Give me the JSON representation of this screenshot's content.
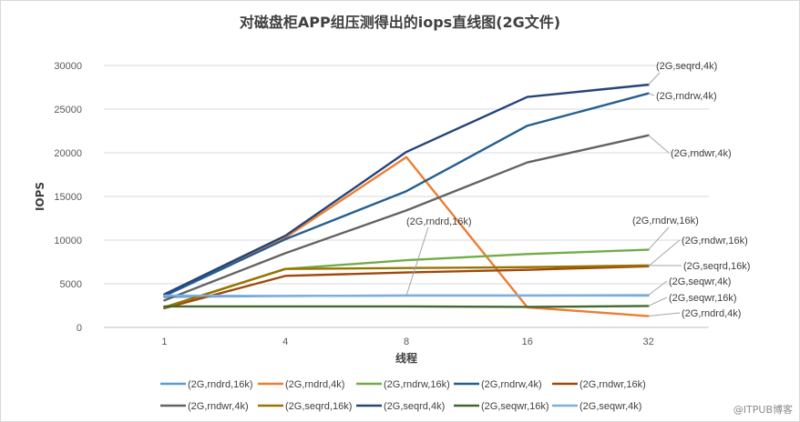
{
  "chart_data": {
    "type": "line",
    "title": "对磁盘柜APP组压测得出的iops直线图(2G文件)",
    "xlabel": "线程",
    "ylabel": "IOPS",
    "categories": [
      "1",
      "4",
      "8",
      "16",
      "32"
    ],
    "ylim": [
      0,
      30000
    ],
    "yticks": [
      0,
      5000,
      10000,
      15000,
      20000,
      25000,
      30000
    ],
    "grid": true,
    "legend": "bottom",
    "series": [
      {
        "name": "(2G,rndrd,16k)",
        "color": "#5b9bd5",
        "values": [
          3500,
          3600,
          3650,
          3650,
          3650
        ]
      },
      {
        "name": "(2G,rndrd,4k)",
        "color": "#ed7d31",
        "values": [
          3700,
          10300,
          19500,
          2300,
          1300
        ]
      },
      {
        "name": "(2G,rndrw,16k)",
        "color": "#70ad47",
        "values": [
          2300,
          6700,
          7700,
          8400,
          8900
        ]
      },
      {
        "name": "(2G,rndrw,4k)",
        "color": "#255e91",
        "values": [
          3600,
          10100,
          15600,
          23100,
          26800
        ]
      },
      {
        "name": "(2G,rndwr,16k)",
        "color": "#9e480e",
        "values": [
          2200,
          5900,
          6300,
          6600,
          7000
        ]
      },
      {
        "name": "(2G,rndwr,4k)",
        "color": "#636363",
        "values": [
          3100,
          8500,
          13400,
          18900,
          22000
        ]
      },
      {
        "name": "(2G,seqrd,16k)",
        "color": "#997300",
        "values": [
          2300,
          6700,
          6800,
          6900,
          7100
        ]
      },
      {
        "name": "(2G,seqrd,4k)",
        "color": "#264478",
        "values": [
          3800,
          10500,
          20100,
          26400,
          27800
        ]
      },
      {
        "name": "(2G,seqwr,16k)",
        "color": "#43682b",
        "values": [
          2400,
          2400,
          2400,
          2350,
          2450
        ]
      },
      {
        "name": "(2G,seqwr,4k)",
        "color": "#7cafdd",
        "values": [
          3650,
          3600,
          3650,
          3650,
          3700
        ]
      }
    ],
    "annotations": [
      {
        "text": "(2G,seqrd,4k)",
        "series": 7,
        "point": 4
      },
      {
        "text": "(2G,rndrw,4k)",
        "series": 3,
        "point": 4
      },
      {
        "text": "(2G,rndwr,4k)",
        "series": 5,
        "point": 4
      },
      {
        "text": "(2G,rndrd,16k)",
        "series": 0,
        "point": 2
      },
      {
        "text": "(2G,rndrw,16k)",
        "series": 2,
        "point": 4
      },
      {
        "text": "(2G,rndwr,16k)",
        "series": 4,
        "point": 4
      },
      {
        "text": "(2G,seqrd,16k)",
        "series": 6,
        "point": 4
      },
      {
        "text": "(2G,seqwr,4k)",
        "series": 9,
        "point": 4
      },
      {
        "text": "(2G,seqwr,16k)",
        "series": 8,
        "point": 4
      },
      {
        "text": "(2G,rndrd,4k)",
        "series": 1,
        "point": 4
      }
    ]
  },
  "watermark": "@ITPUB博客"
}
